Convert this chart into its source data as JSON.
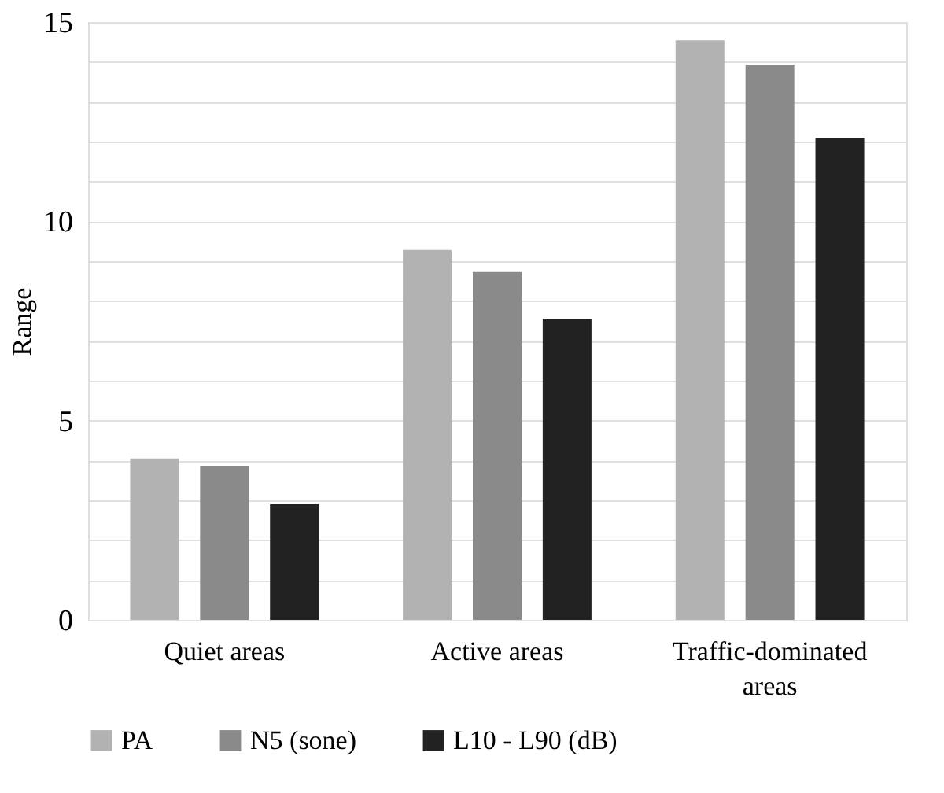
{
  "chart_data": {
    "type": "bar",
    "ylabel": "Range",
    "categories": [
      "Quiet areas",
      "Active areas",
      "Traffic-dominated areas"
    ],
    "series": [
      {
        "name": "PA",
        "color": "#b2b2b2",
        "values": [
          4.05,
          9.28,
          14.54
        ]
      },
      {
        "name": "N5 (sone)",
        "color": "#8a8a8a",
        "values": [
          3.87,
          8.73,
          13.93
        ]
      },
      {
        "name": "L10 - L90 (dB)",
        "color": "#222222",
        "values": [
          2.9,
          7.56,
          12.09
        ]
      }
    ],
    "ylim": [
      0,
      15
    ],
    "yticks": [
      0,
      {
        "value": 1,
        "label": null
      },
      {
        "value": 2,
        "label": null
      },
      {
        "value": 3,
        "label": null
      },
      {
        "value": 4,
        "label": null
      },
      5,
      {
        "value": 6,
        "label": null
      },
      {
        "value": 7,
        "label": null
      },
      {
        "value": 8,
        "label": null
      },
      {
        "value": 9,
        "label": null
      },
      10,
      {
        "value": 11,
        "label": null
      },
      {
        "value": 12,
        "label": null
      },
      {
        "value": 13,
        "label": null
      },
      {
        "value": 14,
        "label": null
      },
      15
    ],
    "grid": "y",
    "legend": "bottom"
  }
}
